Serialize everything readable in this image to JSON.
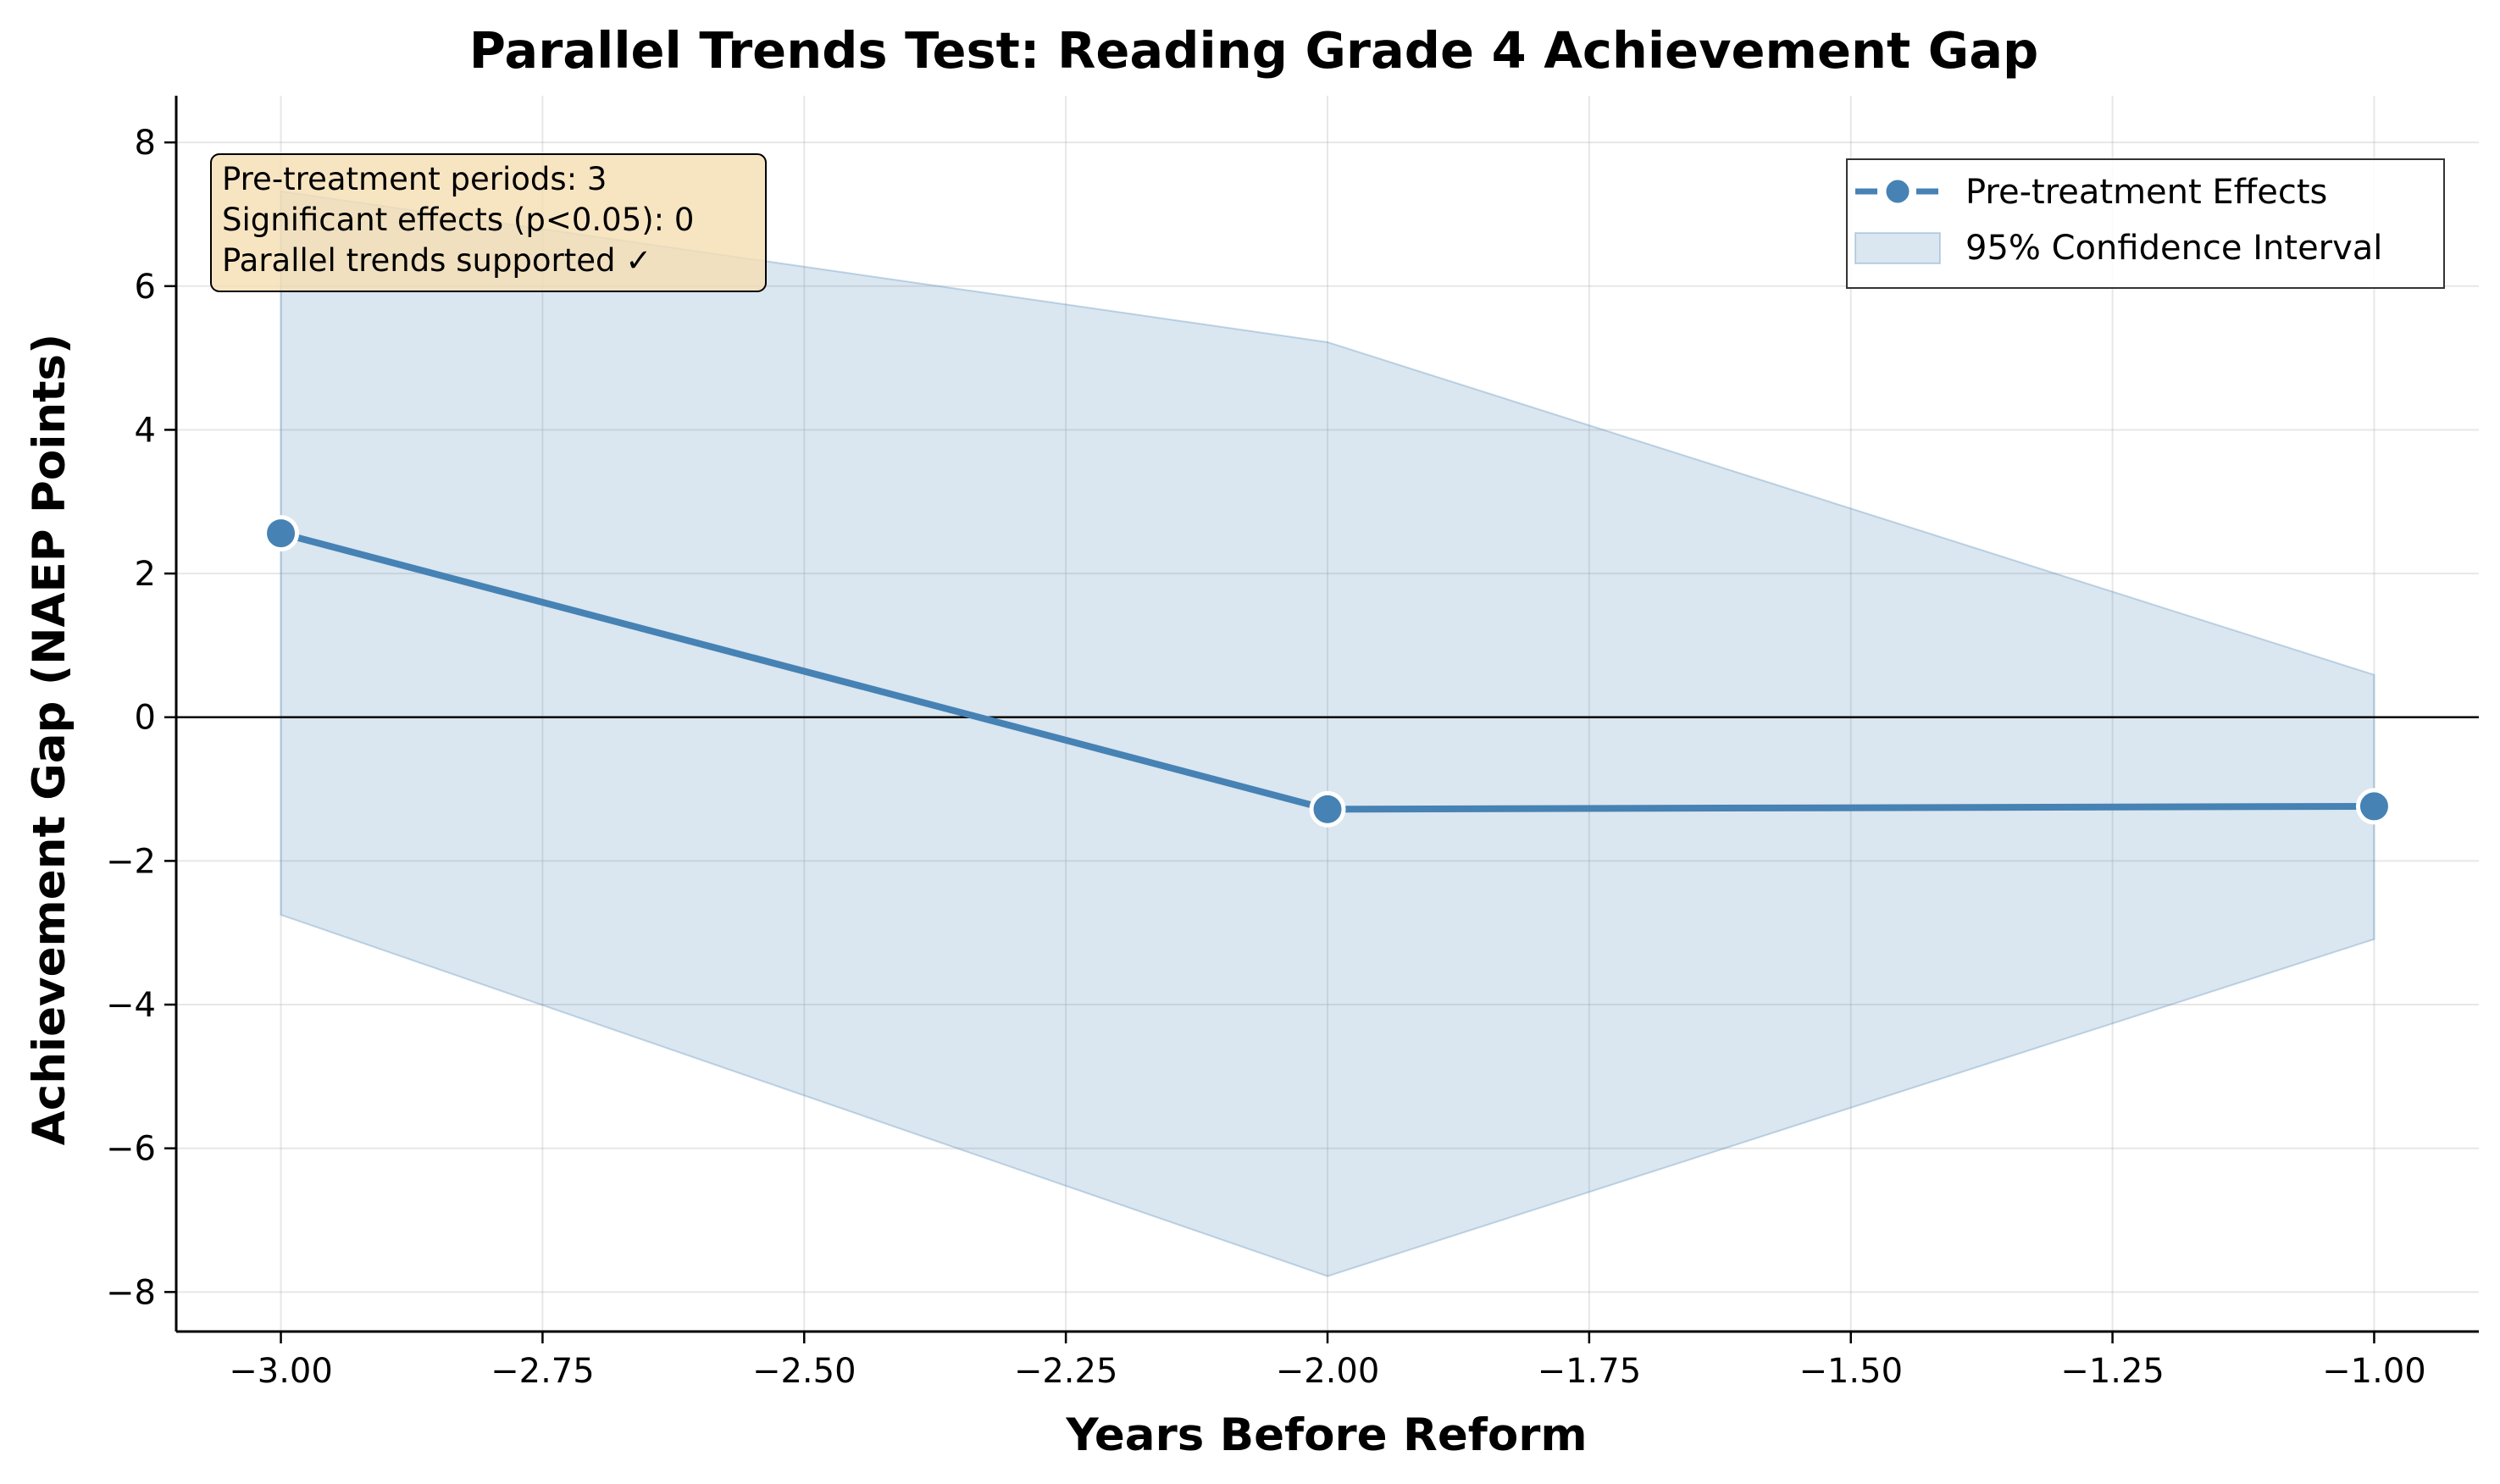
{
  "chart_data": {
    "type": "line",
    "title": "Parallel Trends Test: Reading Grade 4 Achievement Gap",
    "xlabel": "Years Before Reform",
    "ylabel": "Achievement Gap (NAEP Points)",
    "xlim": [
      -3.1,
      -0.9
    ],
    "ylim": [
      -8.55,
      8.65
    ],
    "x_ticks": [
      -3.0,
      -2.75,
      -2.5,
      -2.25,
      -2.0,
      -1.75,
      -1.5,
      -1.25,
      -1.0
    ],
    "x_tick_labels": [
      "−3.00",
      "−2.75",
      "−2.50",
      "−2.25",
      "−2.00",
      "−1.75",
      "−1.50",
      "−1.25",
      "−1.00"
    ],
    "y_ticks": [
      -8,
      -6,
      -4,
      -2,
      0,
      2,
      4,
      6,
      8
    ],
    "y_tick_labels": [
      "−8",
      "−6",
      "−4",
      "−2",
      "0",
      "2",
      "4",
      "6",
      "8"
    ],
    "grid": true,
    "reference_line_y": 0,
    "series": [
      {
        "name": "Pre-treatment Effects",
        "color": "#4682b4",
        "x": [
          -3.0,
          -2.0,
          -1.0
        ],
        "y": [
          2.56,
          -1.28,
          -1.24
        ]
      }
    ],
    "confidence_band": {
      "name": "95% Confidence Interval",
      "color": "#4682b4",
      "x": [
        -3.0,
        -2.0,
        -1.0
      ],
      "lower": [
        -2.75,
        -7.78,
        -3.09
      ],
      "upper": [
        7.32,
        5.22,
        0.59
      ]
    },
    "legend_position": "top-right",
    "annotation": {
      "lines": [
        "Pre-treatment periods: 3",
        "Significant effects (p<0.05): 0",
        "Parallel trends supported ✓"
      ],
      "position": "top-left",
      "background": "#f5deb3"
    }
  }
}
